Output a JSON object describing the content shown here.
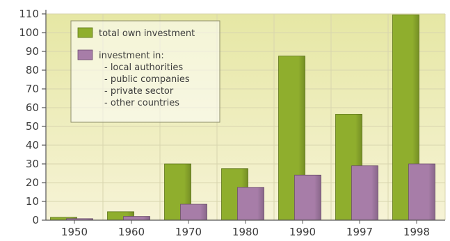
{
  "chart_data": {
    "type": "bar",
    "categories": [
      "1950",
      "1960",
      "1970",
      "1980",
      "1990",
      "1997",
      "1998"
    ],
    "series": [
      {
        "name": "total own investment",
        "values": [
          1.5,
          4.5,
          30,
          27.5,
          87.5,
          56.5,
          109.5
        ]
      },
      {
        "name": "investment in:\n- local authorities\n- public companies\n- private sector\n- other countries",
        "values": [
          0.8,
          2,
          8.5,
          17.5,
          24,
          29,
          30
        ]
      }
    ],
    "ylim": [
      0,
      110
    ],
    "yticks": [
      0,
      10,
      20,
      30,
      40,
      50,
      60,
      70,
      80,
      90,
      100,
      110
    ],
    "grid": true,
    "legend_position": "top-left",
    "colors": {
      "series_0": "#8fae2d",
      "series_1": "#a77da8",
      "plot_bg_top": "#e6e7a4",
      "plot_bg_bottom": "#f6f3d6",
      "grid": "#d8d5ae",
      "axis": "#555555",
      "text": "#3c3c3c"
    }
  }
}
